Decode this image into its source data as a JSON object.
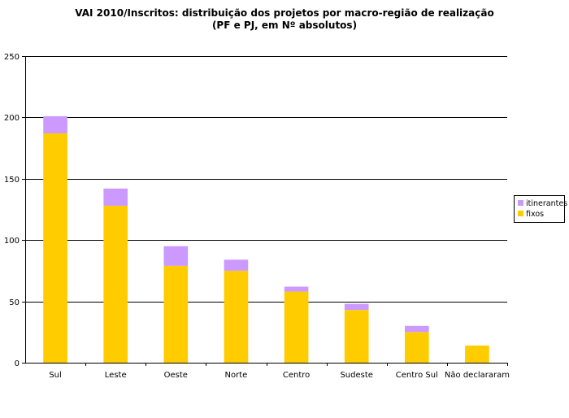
{
  "chart_data": {
    "type": "bar",
    "stacked": true,
    "title": "VAI 2010/Inscritos: distribuição dos projetos por macro-região de realização",
    "subtitle": "(PF e PJ, em Nº absolutos)",
    "categories": [
      "Sul",
      "Leste",
      "Oeste",
      "Norte",
      "Centro",
      "Sudeste",
      "Centro Sul",
      "Não declararam"
    ],
    "series": [
      {
        "name": "fixos",
        "color": "#FFCC00",
        "values": [
          187,
          128,
          79,
          75,
          58,
          43,
          25,
          14
        ]
      },
      {
        "name": "itinerantes",
        "color": "#CC99FF",
        "values": [
          14,
          14,
          16,
          9,
          4,
          5,
          5,
          0
        ]
      }
    ],
    "legend_order": [
      "itinerantes",
      "fixos"
    ],
    "ylim": [
      0,
      250
    ],
    "yticks": [
      0,
      50,
      100,
      150,
      200,
      250
    ],
    "grid": true,
    "legend_position": "right",
    "xlabel": "",
    "ylabel": ""
  }
}
